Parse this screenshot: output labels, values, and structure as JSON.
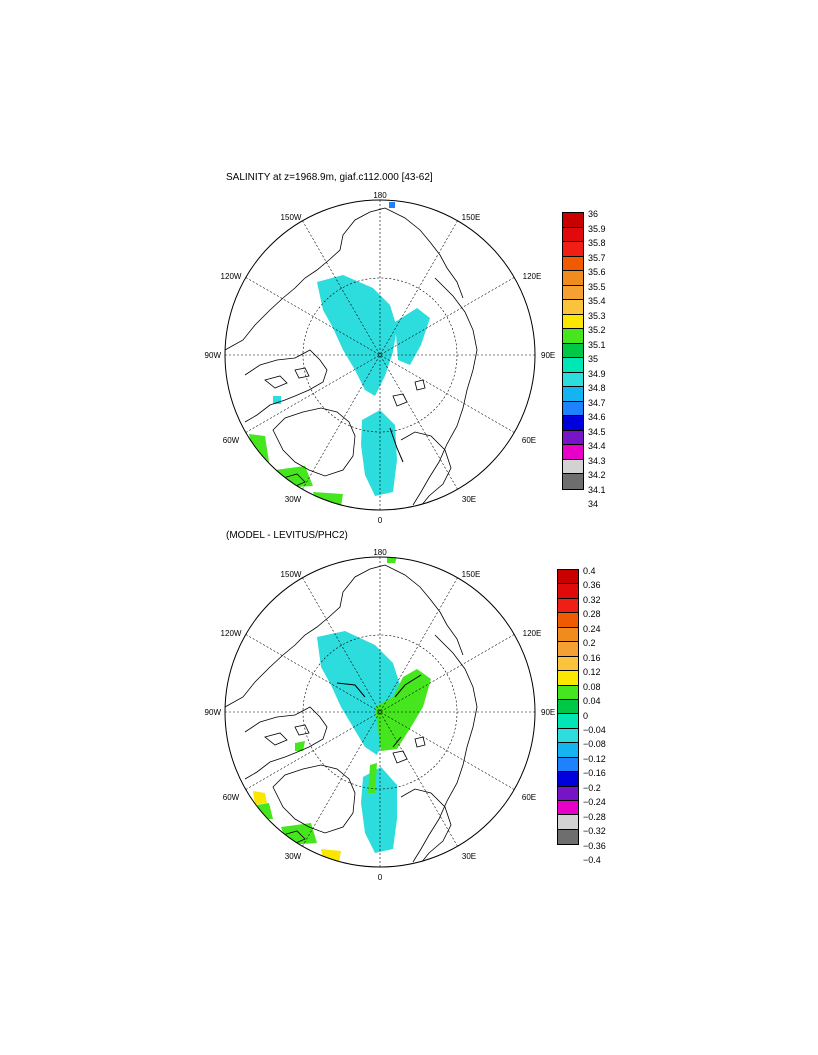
{
  "panels": [
    {
      "title": "SALINITY at z=1968.9m, giaf.c112.000 [43-62]",
      "legend_labels": [
        "36",
        "35.9",
        "35.8",
        "35.7",
        "35.6",
        "35.5",
        "35.4",
        "35.3",
        "35.2",
        "35.1",
        "35",
        "34.9",
        "34.8",
        "34.7",
        "34.6",
        "34.5",
        "34.4",
        "34.3",
        "34.2",
        "34.1",
        "34"
      ],
      "legend_colors": [
        "#c80000",
        "#e00a0a",
        "#f01e14",
        "#f05a00",
        "#f08c1e",
        "#f5a032",
        "#fac33c",
        "#fae600",
        "#46e61e",
        "#00c846",
        "#00e6b4",
        "#2ddcdc",
        "#14b4f0",
        "#1e82ff",
        "#0000dc",
        "#7814c8",
        "#e600c8",
        "#d2d2d2",
        "#6e6e6e"
      ]
    },
    {
      "title": "(MODEL - LEVITUS/PHC2)",
      "legend_labels": [
        "0.4",
        "0.36",
        "0.32",
        "0.28",
        "0.24",
        "0.2",
        "0.16",
        "0.12",
        "0.08",
        "0.04",
        "0",
        "−0.04",
        "−0.08",
        "−0.12",
        "−0.16",
        "−0.2",
        "−0.24",
        "−0.28",
        "−0.32",
        "−0.36",
        "−0.4"
      ],
      "legend_colors": [
        "#c80000",
        "#e00a0a",
        "#f01e14",
        "#f05a00",
        "#f08c1e",
        "#f5a032",
        "#fac33c",
        "#fae600",
        "#46e61e",
        "#00c846",
        "#00e6b4",
        "#2ddcdc",
        "#14b4f0",
        "#1e82ff",
        "#0000dc",
        "#7814c8",
        "#e600c8",
        "#d2d2d2",
        "#6e6e6e"
      ]
    }
  ],
  "map_labels": {
    "top": "180",
    "bottom": "0",
    "left": "90W",
    "right": "90E",
    "ul1": "150W",
    "ul2": "120W",
    "ur1": "150E",
    "ur2": "120E",
    "ll1": "60W",
    "ll2": "30W",
    "lr1": "60E",
    "lr2": "30E"
  },
  "colors": {
    "teal": "#2ddcdc",
    "green": "#46e61e",
    "yellow": "#fae600",
    "blue": "#1e82ff"
  }
}
